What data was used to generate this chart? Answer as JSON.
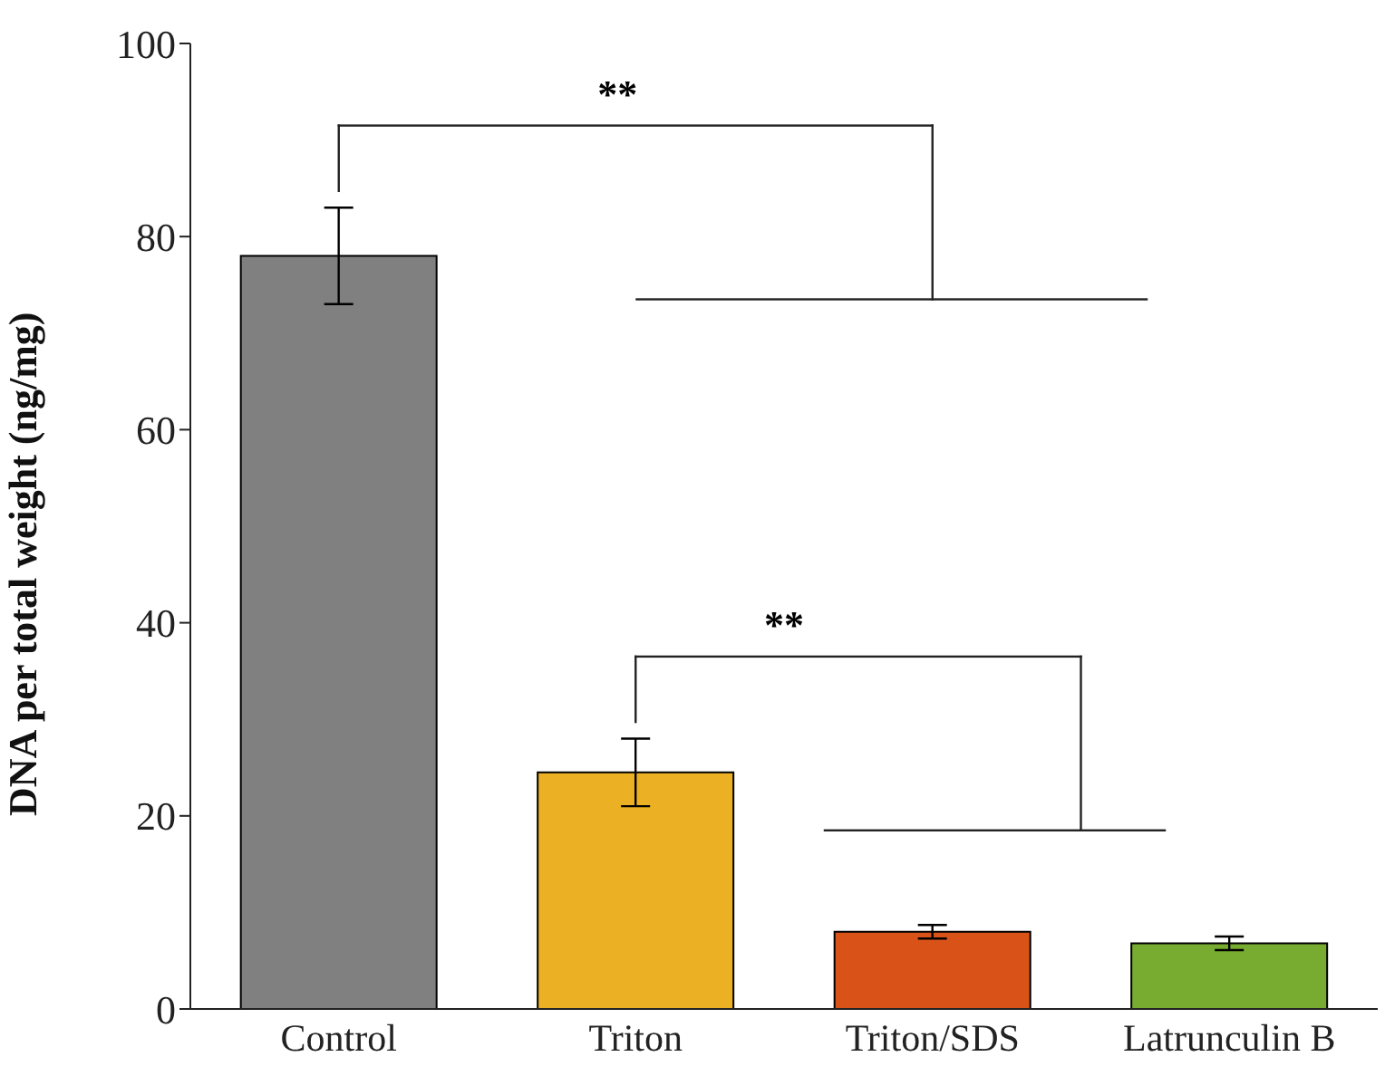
{
  "chart_data": {
    "type": "bar",
    "ylabel": "DNA per total weight (ng/mg)",
    "categories": [
      "Control",
      "Triton",
      "Triton/SDS",
      "Latrunculin B"
    ],
    "values": [
      78,
      24.5,
      8,
      6.8
    ],
    "colors": [
      "#808080",
      "#ebb023",
      "#d95319",
      "#77ac30"
    ],
    "errors": [
      5,
      3.5,
      0.7,
      0.7
    ],
    "ylim": [
      0,
      100
    ],
    "yticks": [
      0,
      20,
      40,
      60,
      80,
      100
    ],
    "grid": false,
    "legend": false,
    "annotations": [
      "**",
      "**"
    ]
  }
}
